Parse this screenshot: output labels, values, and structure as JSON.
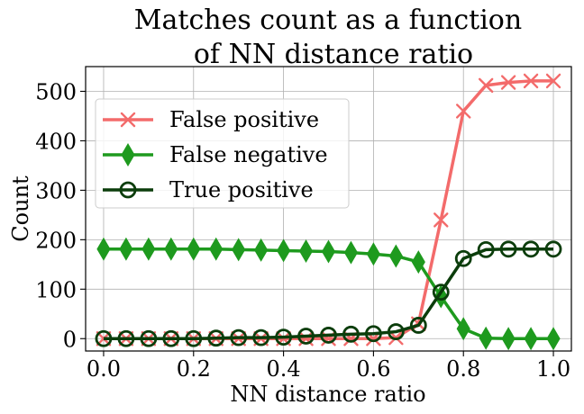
{
  "chart_data": {
    "type": "line",
    "title": [
      "Matches count as a function",
      "of NN distance ratio"
    ],
    "xlabel": "NN distance ratio",
    "ylabel": "Count",
    "xlim": [
      -0.04,
      1.04
    ],
    "ylim": [
      -25,
      550
    ],
    "xticks": [
      0.0,
      0.2,
      0.4,
      0.6,
      0.8,
      1.0
    ],
    "xtick_labels": [
      "0.0",
      "0.2",
      "0.4",
      "0.6",
      "0.8",
      "1.0"
    ],
    "yticks": [
      0,
      100,
      200,
      300,
      400,
      500
    ],
    "ytick_labels": [
      "0",
      "100",
      "200",
      "300",
      "400",
      "500"
    ],
    "grid": true,
    "legend_position": "upper-left",
    "x": [
      0.0,
      0.05,
      0.1,
      0.15,
      0.2,
      0.25,
      0.3,
      0.35,
      0.4,
      0.45,
      0.5,
      0.55,
      0.6,
      0.65,
      0.7,
      0.75,
      0.8,
      0.85,
      0.9,
      0.95,
      1.0
    ],
    "series": [
      {
        "name": "False positive",
        "color": "#f36b6b",
        "marker": "x",
        "values": [
          0,
          0,
          0,
          0,
          0,
          0,
          0,
          0,
          0,
          0,
          0,
          0,
          0,
          2,
          30,
          240,
          460,
          512,
          518,
          521,
          521
        ]
      },
      {
        "name": "False negative",
        "color": "#1e9a1e",
        "marker": "thin_diamond",
        "values": [
          181,
          181,
          181,
          181,
          181,
          181,
          180,
          179,
          178,
          177,
          176,
          174,
          171,
          167,
          155,
          85,
          20,
          1,
          0,
          0,
          0
        ]
      },
      {
        "name": "True positive",
        "color": "#0b3d0b",
        "marker": "circle",
        "values": [
          0,
          0,
          0,
          0,
          0,
          1,
          2,
          2,
          3,
          5,
          7,
          9,
          10,
          14,
          27,
          94,
          162,
          180,
          181,
          181,
          181
        ]
      }
    ]
  }
}
